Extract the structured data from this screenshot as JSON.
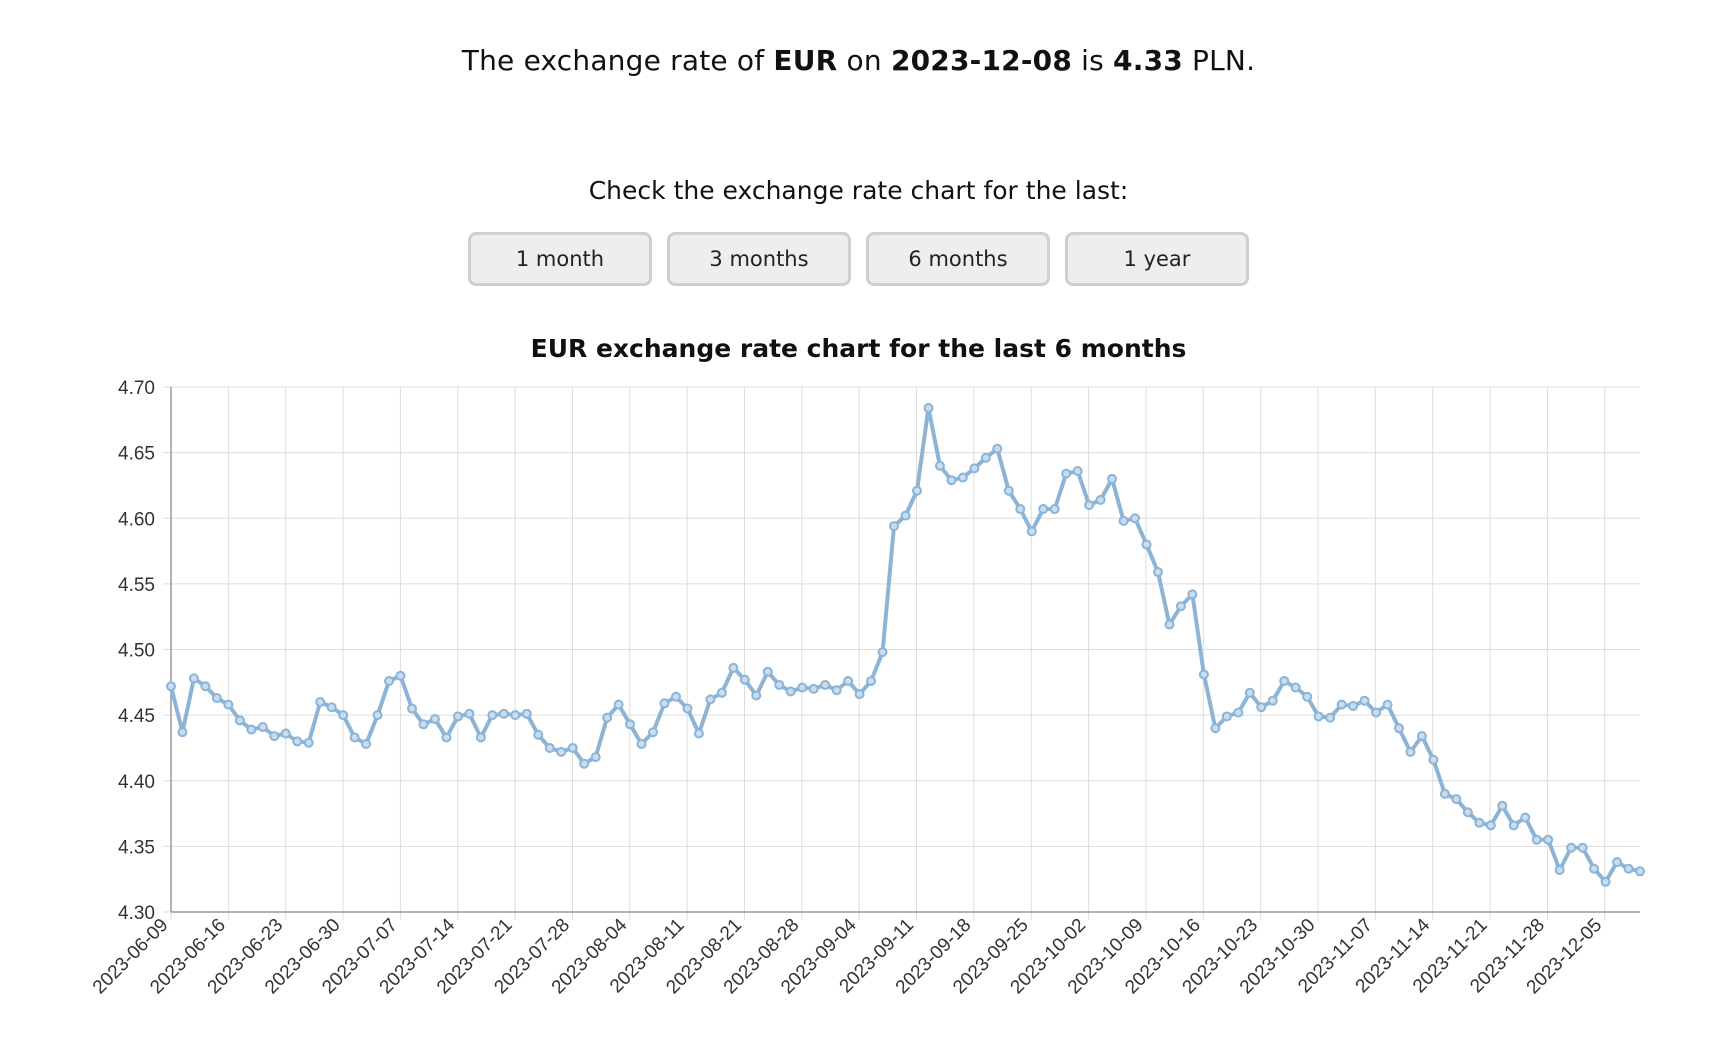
{
  "header": {
    "prefix": "The exchange rate of",
    "currency": "EUR",
    "on_label": "on",
    "date": "2023-12-08",
    "is_label": "is",
    "rate": "4.33",
    "quote_currency": "PLN."
  },
  "controls": {
    "prompt": "Check the exchange rate chart for the last:",
    "buttons": [
      "1 month",
      "3 months",
      "6 months",
      "1 year"
    ]
  },
  "colors": {
    "line": "#8bb4d6",
    "marker_fill": "#c9ddef",
    "grid": "#dddddd",
    "axis": "#999999"
  },
  "chart_data": {
    "type": "line",
    "title": "EUR exchange rate chart for the last 6 months",
    "xlabel": "",
    "ylabel": "",
    "ylim": [
      4.3,
      4.7
    ],
    "yticks": [
      "4.70",
      "4.65",
      "4.60",
      "4.55",
      "4.50",
      "4.45",
      "4.40",
      "4.35",
      "4.30"
    ],
    "xticks": [
      "2023-06-09",
      "2023-06-16",
      "2023-06-23",
      "2023-06-30",
      "2023-07-07",
      "2023-07-14",
      "2023-07-21",
      "2023-07-28",
      "2023-08-04",
      "2023-08-11",
      "2023-08-21",
      "2023-08-28",
      "2023-09-04",
      "2023-09-11",
      "2023-09-18",
      "2023-09-25",
      "2023-10-02",
      "2023-10-09",
      "2023-10-16",
      "2023-10-23",
      "2023-10-30",
      "2023-11-07",
      "2023-11-14",
      "2023-11-21",
      "2023-11-28",
      "2023-12-05"
    ],
    "grid": true,
    "legend": "none",
    "series": [
      {
        "values": [
          4.472,
          4.437,
          4.478,
          4.472,
          4.463,
          4.458,
          4.446,
          4.439,
          4.441,
          4.434,
          4.436,
          4.43,
          4.429,
          4.46,
          4.456,
          4.45,
          4.433,
          4.428,
          4.45,
          4.476,
          4.48,
          4.455,
          4.443,
          4.447,
          4.433,
          4.449,
          4.451,
          4.433,
          4.45,
          4.451,
          4.45,
          4.451,
          4.435,
          4.425,
          4.422,
          4.425,
          4.413,
          4.418,
          4.448,
          4.458,
          4.443,
          4.428,
          4.437,
          4.459,
          4.464,
          4.455,
          4.436,
          4.462,
          4.467,
          4.486,
          4.477,
          4.465,
          4.483,
          4.473,
          4.468,
          4.471,
          4.47,
          4.473,
          4.469,
          4.476,
          4.466,
          4.476,
          4.498,
          4.594,
          4.602,
          4.621,
          4.684,
          4.64,
          4.629,
          4.631,
          4.638,
          4.646,
          4.653,
          4.621,
          4.607,
          4.59,
          4.607,
          4.607,
          4.634,
          4.636,
          4.61,
          4.614,
          4.63,
          4.598,
          4.6,
          4.58,
          4.559,
          4.519,
          4.533,
          4.542,
          4.481,
          4.44,
          4.449,
          4.452,
          4.467,
          4.456,
          4.461,
          4.476,
          4.471,
          4.464,
          4.449,
          4.448,
          4.458,
          4.457,
          4.461,
          4.452,
          4.458,
          4.44,
          4.422,
          4.434,
          4.416,
          4.39,
          4.386,
          4.376,
          4.368,
          4.366,
          4.381,
          4.366,
          4.372,
          4.355,
          4.355,
          4.332,
          4.349,
          4.349,
          4.333,
          4.323,
          4.338,
          4.333,
          4.331
        ]
      }
    ]
  }
}
